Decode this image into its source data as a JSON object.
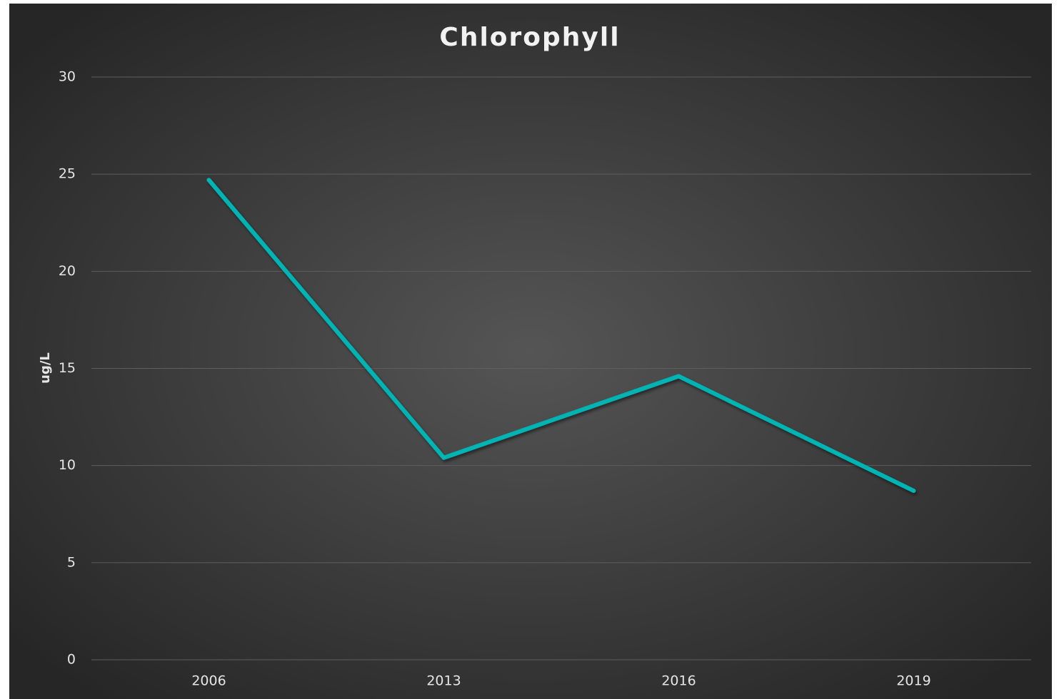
{
  "chart_data": {
    "type": "line",
    "title": "Chlorophyll",
    "y_axis_label": "ug/L",
    "categories": [
      "2006",
      "2013",
      "2016",
      "2019"
    ],
    "series": [
      {
        "name": "Chlorophyll",
        "color": "#00b4b4",
        "values": [
          24.7,
          10.4,
          14.6,
          8.7
        ]
      }
    ],
    "ylim": [
      0,
      30
    ],
    "yticks": [
      0,
      5,
      10,
      15,
      20,
      25,
      30
    ],
    "grid": true
  }
}
